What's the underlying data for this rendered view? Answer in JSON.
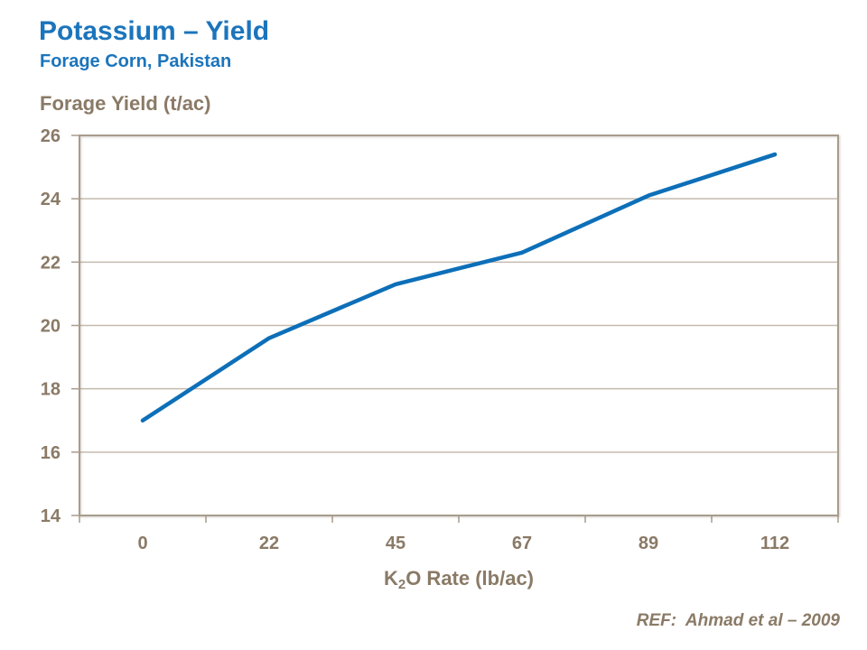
{
  "page": {
    "title": "Potassium – Yield",
    "subtitle": "Forage Corn, Pakistan",
    "footer_ref": "REF:  Ahmad et al – 2009"
  },
  "chart_data": {
    "type": "line",
    "title": "Potassium – Yield",
    "subtitle": "Forage Corn, Pakistan",
    "categories": [
      "0",
      "22",
      "45",
      "67",
      "89",
      "112"
    ],
    "series": [
      {
        "values": [
          17.0,
          19.6,
          21.3,
          22.3,
          24.1,
          25.4
        ],
        "color": "#0D6FB8"
      }
    ],
    "xlabel": {
      "prefix": "K",
      "subscript": "2",
      "suffix": "O Rate (lb/ac)"
    },
    "ylabel": "Forage Yield (t/ac)",
    "ylim": [
      14,
      26
    ],
    "yticks": [
      14,
      16,
      18,
      20,
      22,
      24,
      26
    ],
    "grid": true,
    "legend": "none"
  },
  "colors": {
    "heading_blue": "#1B75BC",
    "line_blue": "#0D6FB8",
    "axis_text_brown": "#8A7A66",
    "gridline": "#C5BBAE",
    "axis_border": "#A89C8C",
    "background": "#FFFFFF"
  }
}
